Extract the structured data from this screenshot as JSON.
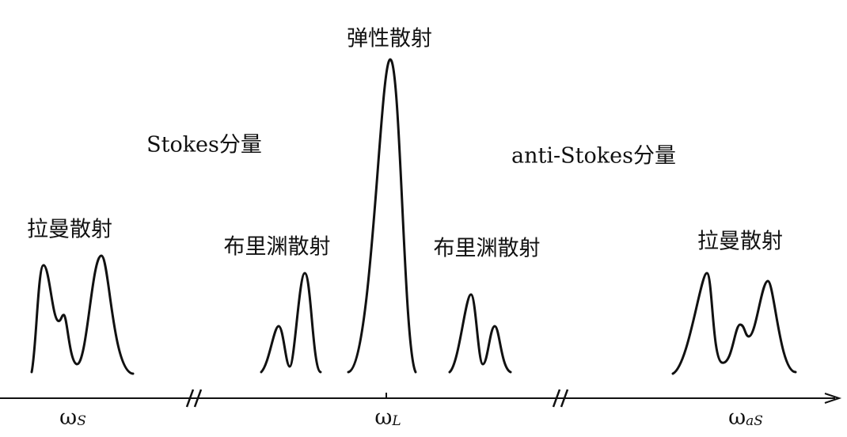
{
  "title": "弹性散射",
  "side_labels": [
    "Stokes分量",
    "anti-Stokes分量"
  ],
  "peak_labels": [
    "拉曼散射",
    "布里渊散射",
    "布里渊散射",
    "拉曼散射"
  ],
  "axis_labels": [
    {
      "symbol": "ω",
      "sub": "S"
    },
    {
      "symbol": "ω",
      "sub": "L"
    },
    {
      "symbol": "ω",
      "sub": "aS"
    }
  ]
}
